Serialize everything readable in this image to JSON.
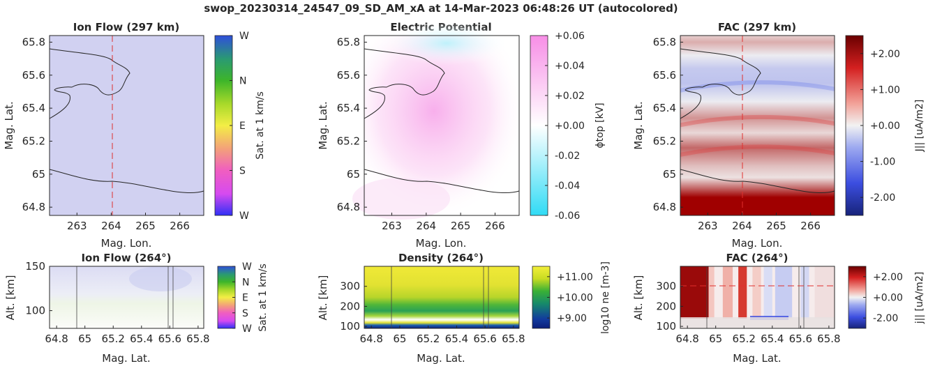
{
  "figure": {
    "suptitle": "swop_20230314_24547_09_SD_AM_xA at 14-Mar-2023 06:48:26 UT (autocolored)"
  },
  "chart_data": [
    {
      "id": "ionflow_map",
      "type": "heatmap",
      "title": "Ion Flow (297 km)",
      "xlabel": "Mag. Lon.",
      "ylabel": "Mag. Lat.",
      "xlim": [
        262.2,
        266.7
      ],
      "ylim": [
        64.75,
        65.84
      ],
      "xticks": [
        "263",
        "264",
        "265",
        "266"
      ],
      "yticks": [
        "64.8",
        "65",
        "65.2",
        "65.4",
        "65.6",
        "65.8"
      ],
      "cut_lon": 264,
      "fill": "#d6d6f3",
      "colorbar": {
        "label": "Sat. at 1 km/s",
        "ticks": [
          "W",
          "N",
          "E",
          "S",
          "W"
        ],
        "colors": [
          "#2f4fdb",
          "#2a9a72",
          "#3db52a",
          "#a8d92a",
          "#f3ee45",
          "#f3a07a",
          "#f05ec0",
          "#d64af0",
          "#3030f5"
        ]
      }
    },
    {
      "id": "potential_map",
      "type": "heatmap",
      "title": "Electric Potential",
      "xlabel": "Mag. Lon.",
      "ylabel": "Mag. Lat.",
      "xlim": [
        262.2,
        266.7
      ],
      "ylim": [
        64.75,
        65.84
      ],
      "xticks": [
        "263",
        "264",
        "265",
        "266"
      ],
      "yticks": [
        "64.8",
        "65",
        "65.2",
        "65.4",
        "65.6",
        "65.8"
      ],
      "colorbar": {
        "label": "ϕtop [kV]",
        "ticks": [
          "+0.06",
          "+0.04",
          "+0.02",
          "+0.00",
          "-0.02",
          "-0.04",
          "-0.06"
        ],
        "colors": [
          "#f78ee6",
          "#ffffff",
          "#31dbf5"
        ]
      }
    },
    {
      "id": "fac_map",
      "type": "heatmap",
      "title": "FAC (297 km)",
      "xlabel": "Mag. Lon.",
      "ylabel": "Mag. Lat.",
      "xlim": [
        262.2,
        266.7
      ],
      "ylim": [
        64.75,
        65.84
      ],
      "xticks": [
        "263",
        "264",
        "265",
        "266"
      ],
      "yticks": [
        "64.8",
        "65",
        "65.2",
        "65.4",
        "65.6",
        "65.8"
      ],
      "cut_lon": 264,
      "colorbar": {
        "label": "J|| [uA/m2]",
        "ticks": [
          "+2.00",
          "+1.00",
          "+0.00",
          "-1.00",
          "-2.00"
        ],
        "colors": [
          "#6a0000",
          "#d42020",
          "#f2a39a",
          "#f2f2f2",
          "#9eaaf0",
          "#3c4ee0",
          "#17237a"
        ]
      },
      "bands": [
        {
          "lat": 64.78,
          "value": 3.0
        },
        {
          "lat": 64.86,
          "value": 2.8
        },
        {
          "lat": 64.98,
          "value": 0.2
        },
        {
          "lat": 65.05,
          "value": 0.6
        },
        {
          "lat": 65.16,
          "value": 1.6
        },
        {
          "lat": 65.25,
          "value": 0.3
        },
        {
          "lat": 65.34,
          "value": 1.1
        },
        {
          "lat": 65.44,
          "value": -0.1
        },
        {
          "lat": 65.55,
          "value": -0.8
        },
        {
          "lat": 65.64,
          "value": -0.7
        },
        {
          "lat": 65.72,
          "value": -0.1
        },
        {
          "lat": 65.8,
          "value": 0.8
        },
        {
          "lat": 65.84,
          "value": 0.4
        }
      ]
    },
    {
      "id": "ionflow_alt",
      "type": "heatmap",
      "title": "Ion Flow (264°)",
      "xlabel": "Mag. Lat.",
      "ylabel": "Alt. [km]",
      "xlim": [
        64.75,
        65.84
      ],
      "ylim": [
        80,
        150
      ],
      "xticks": [
        "64.8",
        "65",
        "65.2",
        "65.4",
        "65.6",
        "65.8"
      ],
      "yticks": [
        "100",
        "150"
      ],
      "colorbar": {
        "label": "Sat. at 1 km/s",
        "ticks": [
          "W",
          "N",
          "E",
          "S",
          "W"
        ],
        "colors": [
          "#2f4fdb",
          "#2a9a72",
          "#3db52a",
          "#a8d92a",
          "#f3ee45",
          "#f3a07a",
          "#f05ec0",
          "#d64af0",
          "#3030f5"
        ]
      }
    },
    {
      "id": "density_alt",
      "type": "heatmap",
      "title": "Density (264°)",
      "xlabel": "Mag. Lat.",
      "ylabel": "Alt. [km]",
      "xlim": [
        64.75,
        65.84
      ],
      "ylim": [
        90,
        400
      ],
      "xticks": [
        "64.8",
        "65",
        "65.2",
        "65.4",
        "65.6",
        "65.8"
      ],
      "yticks": [
        "100",
        "200",
        "300"
      ],
      "colorbar": {
        "label": "log10 ne [m-3]",
        "ticks": [
          "+11.00",
          "+10.00",
          "+9.00"
        ],
        "colors": [
          "#f3ef3a",
          "#c9dc22",
          "#39b036",
          "#168a6a",
          "#123b9e",
          "#0c1f7a"
        ]
      }
    },
    {
      "id": "fac_alt",
      "type": "heatmap",
      "title": "FAC (264°)",
      "xlabel": "Mag. Lat.",
      "ylabel": "Alt. [km]",
      "xlim": [
        64.75,
        65.84
      ],
      "ylim": [
        90,
        400
      ],
      "xticks": [
        "64.8",
        "65",
        "65.2",
        "65.4",
        "65.6",
        "65.8"
      ],
      "yticks": [
        "100",
        "200",
        "300"
      ],
      "ref_alt": 297,
      "colorbar": {
        "label": "j|| [uA/m2]",
        "ticks": [
          "+2.00",
          "+0.00",
          "-2.00"
        ],
        "colors": [
          "#6a0000",
          "#d42020",
          "#f2a39a",
          "#f2f2f2",
          "#9eaaf0",
          "#3c4ee0",
          "#17237a"
        ]
      }
    }
  ]
}
